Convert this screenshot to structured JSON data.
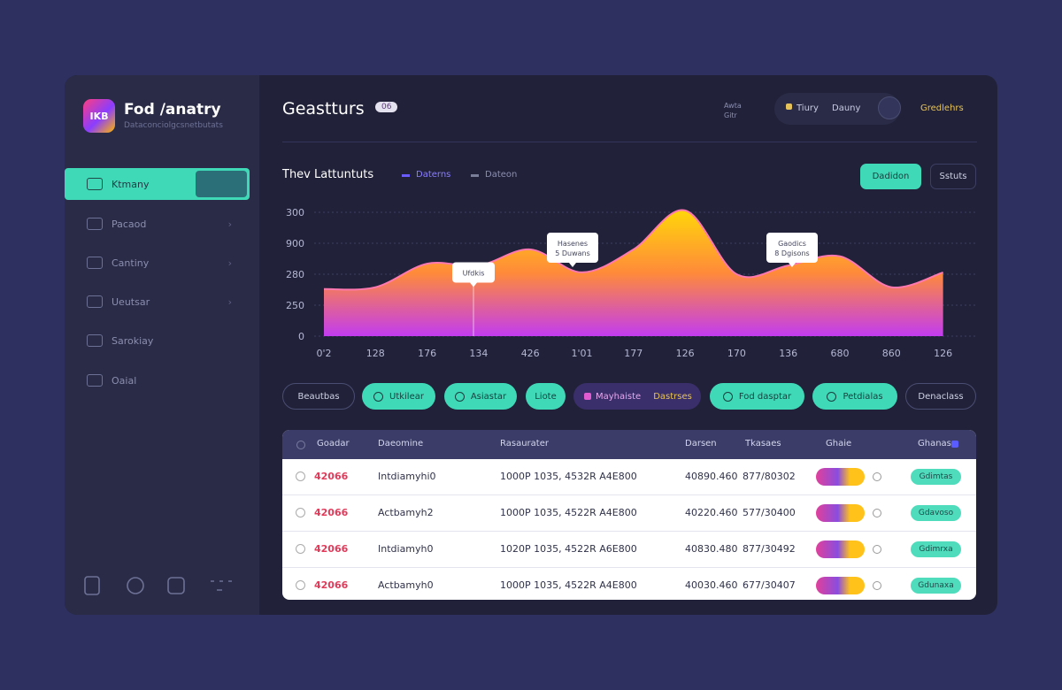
{
  "brand": {
    "logo": "IKB",
    "name": "Fod /anatry",
    "tagline": "Dataconciolgcsnetbutats"
  },
  "nav": [
    "Ktmany",
    "Pacaod",
    "Cantiny",
    "Ueutsar",
    "Sarokiay",
    "Oaial"
  ],
  "header": {
    "title": "Geastturs",
    "badge": "06",
    "meta": [
      "Awta",
      "Gitr"
    ],
    "pill": [
      "Tiury",
      "Dauny"
    ],
    "user": "Gredlehrs"
  },
  "chart_data": {
    "type": "area",
    "title": "Thev Lattuntuts",
    "legend": [
      {
        "name": "Daterns",
        "color": "#6b5cff"
      },
      {
        "name": "Dateon",
        "color": "#7b7e99"
      }
    ],
    "gradient": [
      "#ffd60a",
      "#ff8a3a",
      "#c23cf0"
    ],
    "categories": [
      "0'2",
      "128",
      "176",
      "134",
      "426",
      "1'01",
      "177",
      "126",
      "170",
      "136",
      "680",
      "860",
      "126"
    ],
    "values": [
      76,
      79,
      117,
      114,
      140,
      103,
      140,
      203,
      100,
      114,
      129,
      79,
      103
    ],
    "ylim": [
      0,
      220
    ],
    "yticks": [
      0,
      {
        "value": 50,
        "label": "250"
      },
      {
        "value": 100,
        "label": "280"
      },
      {
        "value": 150,
        "label": "900"
      },
      {
        "value": 200,
        "label": "300"
      }
    ],
    "grid": true,
    "annotations": [
      [
        "Ufdkis"
      ],
      [
        "Hasenes",
        "5 Duwans"
      ],
      [
        "Gaodics",
        "8 Dgisons"
      ]
    ]
  },
  "chart_controls": [
    "Dadidon",
    "Sstuts"
  ],
  "filters": [
    "Beautbas",
    "Utkilear",
    "Asiastar",
    "Liote",
    "Mayhaiste",
    "Dastrses",
    "Fod dasptar",
    "Petdialas",
    "Denaclass"
  ],
  "table": {
    "columns": [
      "Goadar",
      "Daeomine",
      "Rasaurater",
      "Darsen",
      "Tkasaes",
      "Ghaie",
      "Ghanas"
    ],
    "rows": [
      [
        "42066",
        "Intdiamyhi0",
        "1000P 1035, 4532R A4E800",
        "40890.460",
        "877/80302",
        "Gdimtas"
      ],
      [
        "42066",
        "Actbamyh2",
        "1000P 1035, 4522R A4E800",
        "40220.460",
        "577/30400",
        "Gdavoso"
      ],
      [
        "42066",
        "Intdiamyh0",
        "1020P 1035, 4522R A6E800",
        "40830.480",
        "877/30492",
        "Gdimrxa"
      ],
      [
        "42066",
        "Actbamyh0",
        "1000P 1035, 4522R A4E800",
        "40030.460",
        "677/30407",
        "Gdunaxa"
      ]
    ]
  }
}
